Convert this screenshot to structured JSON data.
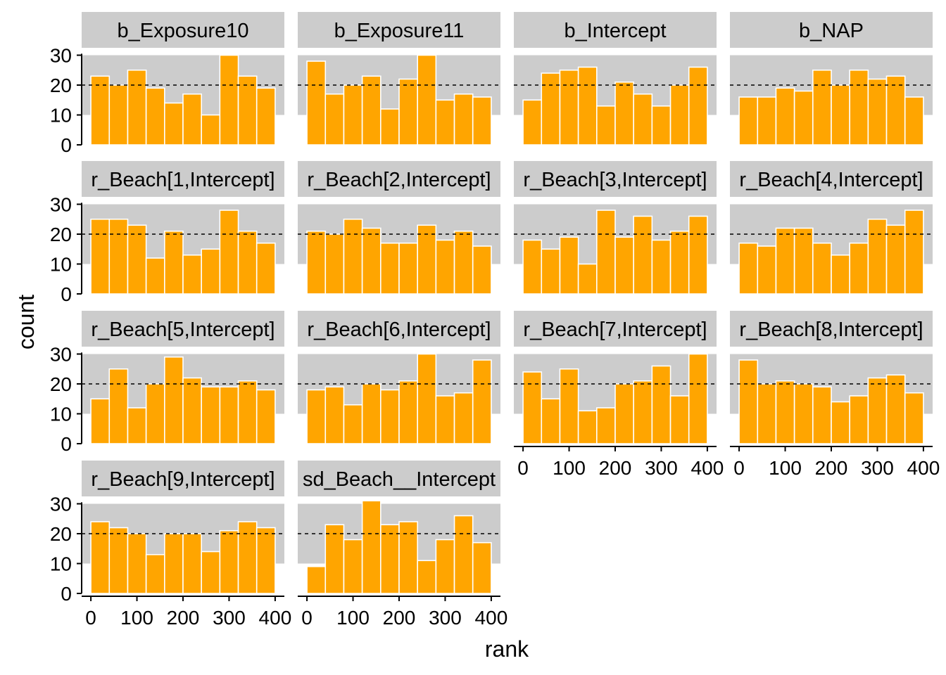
{
  "chart_data": {
    "type": "bar",
    "layout": "facet-grid 4 columns",
    "xlabel": "rank",
    "ylabel": "count",
    "xlim": [
      -20,
      420
    ],
    "ylim": [
      0,
      32
    ],
    "x_ticks": [
      "0",
      "100",
      "200",
      "300",
      "400"
    ],
    "y_ticks": [
      "0",
      "10",
      "20",
      "30"
    ],
    "bin_centers": [
      20,
      60,
      100,
      140,
      180,
      220,
      260,
      300,
      340,
      380
    ],
    "bin_width": 40,
    "reference_line": 20,
    "band": [
      10,
      30
    ],
    "colors": {
      "bar": "#FFA500",
      "bar_edge": "#ffffff",
      "band": "#CCCCCC",
      "strip": "#CCCCCC"
    },
    "panels": [
      {
        "title": "b_Exposure10",
        "values": [
          23,
          20,
          25,
          19,
          14,
          17,
          10,
          30,
          23,
          19
        ]
      },
      {
        "title": "b_Exposure11",
        "values": [
          28,
          17,
          20,
          23,
          12,
          22,
          30,
          15,
          17,
          16
        ]
      },
      {
        "title": "b_Intercept",
        "values": [
          15,
          24,
          25,
          26,
          13,
          21,
          17,
          13,
          20,
          26
        ]
      },
      {
        "title": "b_NAP",
        "values": [
          16,
          16,
          19,
          18,
          25,
          20,
          25,
          22,
          23,
          16
        ]
      },
      {
        "title": "r_Beach[1,Intercept]",
        "values": [
          25,
          25,
          23,
          12,
          21,
          13,
          15,
          28,
          21,
          17
        ]
      },
      {
        "title": "r_Beach[2,Intercept]",
        "values": [
          21,
          20,
          25,
          22,
          17,
          17,
          23,
          18,
          21,
          16
        ]
      },
      {
        "title": "r_Beach[3,Intercept]",
        "values": [
          18,
          15,
          19,
          10,
          28,
          19,
          26,
          18,
          21,
          26
        ]
      },
      {
        "title": "r_Beach[4,Intercept]",
        "values": [
          17,
          16,
          22,
          22,
          17,
          13,
          17,
          25,
          23,
          28
        ]
      },
      {
        "title": "r_Beach[5,Intercept]",
        "values": [
          15,
          25,
          12,
          20,
          29,
          22,
          19,
          19,
          21,
          18
        ]
      },
      {
        "title": "r_Beach[6,Intercept]",
        "values": [
          18,
          19,
          13,
          20,
          18,
          21,
          30,
          16,
          17,
          28
        ]
      },
      {
        "title": "r_Beach[7,Intercept]",
        "values": [
          24,
          15,
          25,
          11,
          12,
          20,
          21,
          26,
          16,
          30
        ]
      },
      {
        "title": "r_Beach[8,Intercept]",
        "values": [
          28,
          20,
          21,
          20,
          19,
          14,
          16,
          22,
          23,
          17
        ]
      },
      {
        "title": "r_Beach[9,Intercept]",
        "values": [
          24,
          22,
          20,
          13,
          20,
          20,
          14,
          21,
          24,
          22
        ]
      },
      {
        "title": "sd_Beach__Intercept",
        "values": [
          9,
          23,
          18,
          31,
          23,
          24,
          11,
          18,
          26,
          17
        ]
      }
    ]
  }
}
